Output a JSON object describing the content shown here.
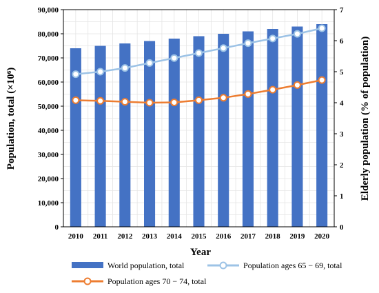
{
  "chart_data": {
    "type": "bar",
    "categories": [
      "2010",
      "2011",
      "2012",
      "2013",
      "2014",
      "2015",
      "2016",
      "2017",
      "2018",
      "2019",
      "2020"
    ],
    "series": [
      {
        "name": "World population, total",
        "type": "bar",
        "axis": "left",
        "color": "#4472C4",
        "values": [
          74000,
          75000,
          76000,
          77000,
          78000,
          79000,
          80000,
          81000,
          82000,
          83000,
          84000
        ]
      },
      {
        "name": "Population ages 65 − 69, total",
        "type": "line",
        "axis": "right",
        "color": "#9DC3E6",
        "values": [
          4.92,
          5.0,
          5.12,
          5.28,
          5.44,
          5.6,
          5.76,
          5.92,
          6.07,
          6.22,
          6.4
        ]
      },
      {
        "name": "Population ages 70 − 74, total",
        "type": "line",
        "axis": "right",
        "color": "#ED7D31",
        "values": [
          4.08,
          4.06,
          4.03,
          4.0,
          4.01,
          4.08,
          4.16,
          4.28,
          4.42,
          4.57,
          4.73
        ]
      }
    ],
    "xlabel": "Year",
    "ylabel_left": "Population, total (×10⁶)",
    "ylabel_right": "Elderly population (% of population)",
    "ylim_left": [
      0,
      90000
    ],
    "ylim_right": [
      0,
      7
    ],
    "yticks_left": [
      "0",
      "10,000",
      "20,000",
      "30,000",
      "40,000",
      "50,000",
      "60,000",
      "70,000",
      "80,000",
      "90,000"
    ],
    "yticks_right": [
      "0",
      "1",
      "2",
      "3",
      "4",
      "5",
      "6",
      "7"
    ],
    "grid": true,
    "legend_position": "bottom"
  }
}
